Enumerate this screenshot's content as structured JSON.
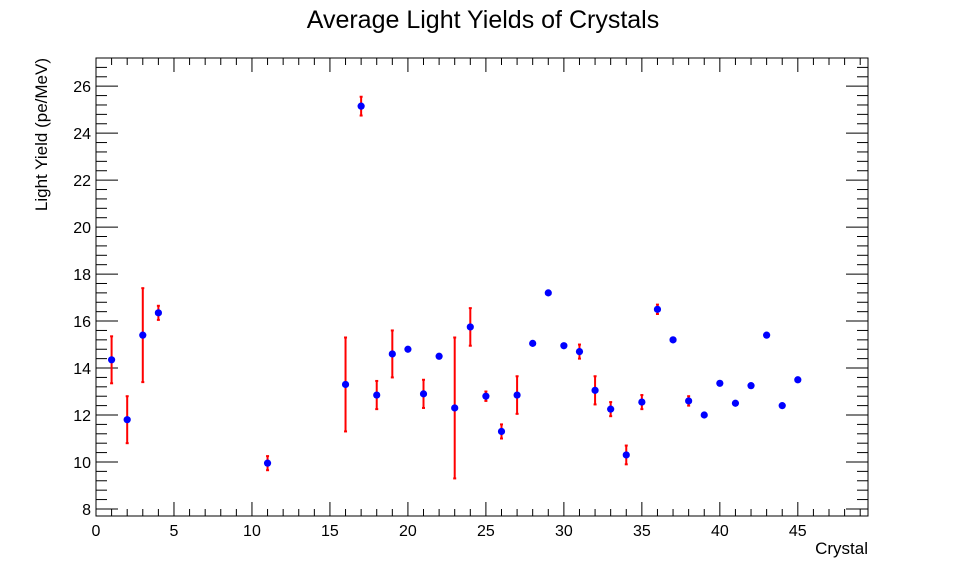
{
  "chart_data": {
    "type": "scatter",
    "title": "Average Light Yields of Crystals",
    "xlabel": "Crystal",
    "ylabel": "Light Yield (pe/MeV)",
    "xlim": [
      0,
      49.5
    ],
    "ylim": [
      7.7,
      27.2
    ],
    "xticks": [
      0,
      5,
      10,
      15,
      20,
      25,
      30,
      35,
      40,
      45
    ],
    "yticks": [
      8,
      10,
      12,
      14,
      16,
      18,
      20,
      22,
      24,
      26
    ],
    "grid": false,
    "legend": "none",
    "marker_color": "#0000ff",
    "error_bar_color": "#ff0000",
    "points": [
      {
        "x": 1,
        "y": 14.35,
        "err": 1.0
      },
      {
        "x": 2,
        "y": 11.8,
        "err": 1.0
      },
      {
        "x": 3,
        "y": 15.4,
        "err": 2.0
      },
      {
        "x": 4,
        "y": 16.35,
        "err": 0.3
      },
      {
        "x": 11,
        "y": 9.95,
        "err": 0.3
      },
      {
        "x": 16,
        "y": 13.3,
        "err": 2.0
      },
      {
        "x": 17,
        "y": 25.15,
        "err": 0.4
      },
      {
        "x": 18,
        "y": 12.85,
        "err": 0.6
      },
      {
        "x": 19,
        "y": 14.6,
        "err": 1.0
      },
      {
        "x": 20,
        "y": 14.8,
        "err": 0
      },
      {
        "x": 21,
        "y": 12.9,
        "err": 0.6
      },
      {
        "x": 22,
        "y": 14.5,
        "err": 0
      },
      {
        "x": 23,
        "y": 12.3,
        "err": 3.0
      },
      {
        "x": 24,
        "y": 15.75,
        "err": 0.8
      },
      {
        "x": 25,
        "y": 12.8,
        "err": 0.2
      },
      {
        "x": 26,
        "y": 11.3,
        "err": 0.3
      },
      {
        "x": 27,
        "y": 12.85,
        "err": 0.8
      },
      {
        "x": 28,
        "y": 15.05,
        "err": 0
      },
      {
        "x": 29,
        "y": 17.2,
        "err": 0
      },
      {
        "x": 30,
        "y": 14.95,
        "err": 0
      },
      {
        "x": 31,
        "y": 14.7,
        "err": 0.3
      },
      {
        "x": 32,
        "y": 13.05,
        "err": 0.6
      },
      {
        "x": 33,
        "y": 12.25,
        "err": 0.3
      },
      {
        "x": 34,
        "y": 10.3,
        "err": 0.4
      },
      {
        "x": 35,
        "y": 12.55,
        "err": 0.3
      },
      {
        "x": 36,
        "y": 16.5,
        "err": 0.2
      },
      {
        "x": 37,
        "y": 15.2,
        "err": 0
      },
      {
        "x": 38,
        "y": 12.6,
        "err": 0.2
      },
      {
        "x": 39,
        "y": 12.0,
        "err": 0
      },
      {
        "x": 40,
        "y": 13.35,
        "err": 0
      },
      {
        "x": 41,
        "y": 12.5,
        "err": 0
      },
      {
        "x": 42,
        "y": 13.25,
        "err": 0
      },
      {
        "x": 43,
        "y": 15.4,
        "err": 0
      },
      {
        "x": 44,
        "y": 12.4,
        "err": 0
      },
      {
        "x": 45,
        "y": 13.5,
        "err": 0
      }
    ]
  }
}
